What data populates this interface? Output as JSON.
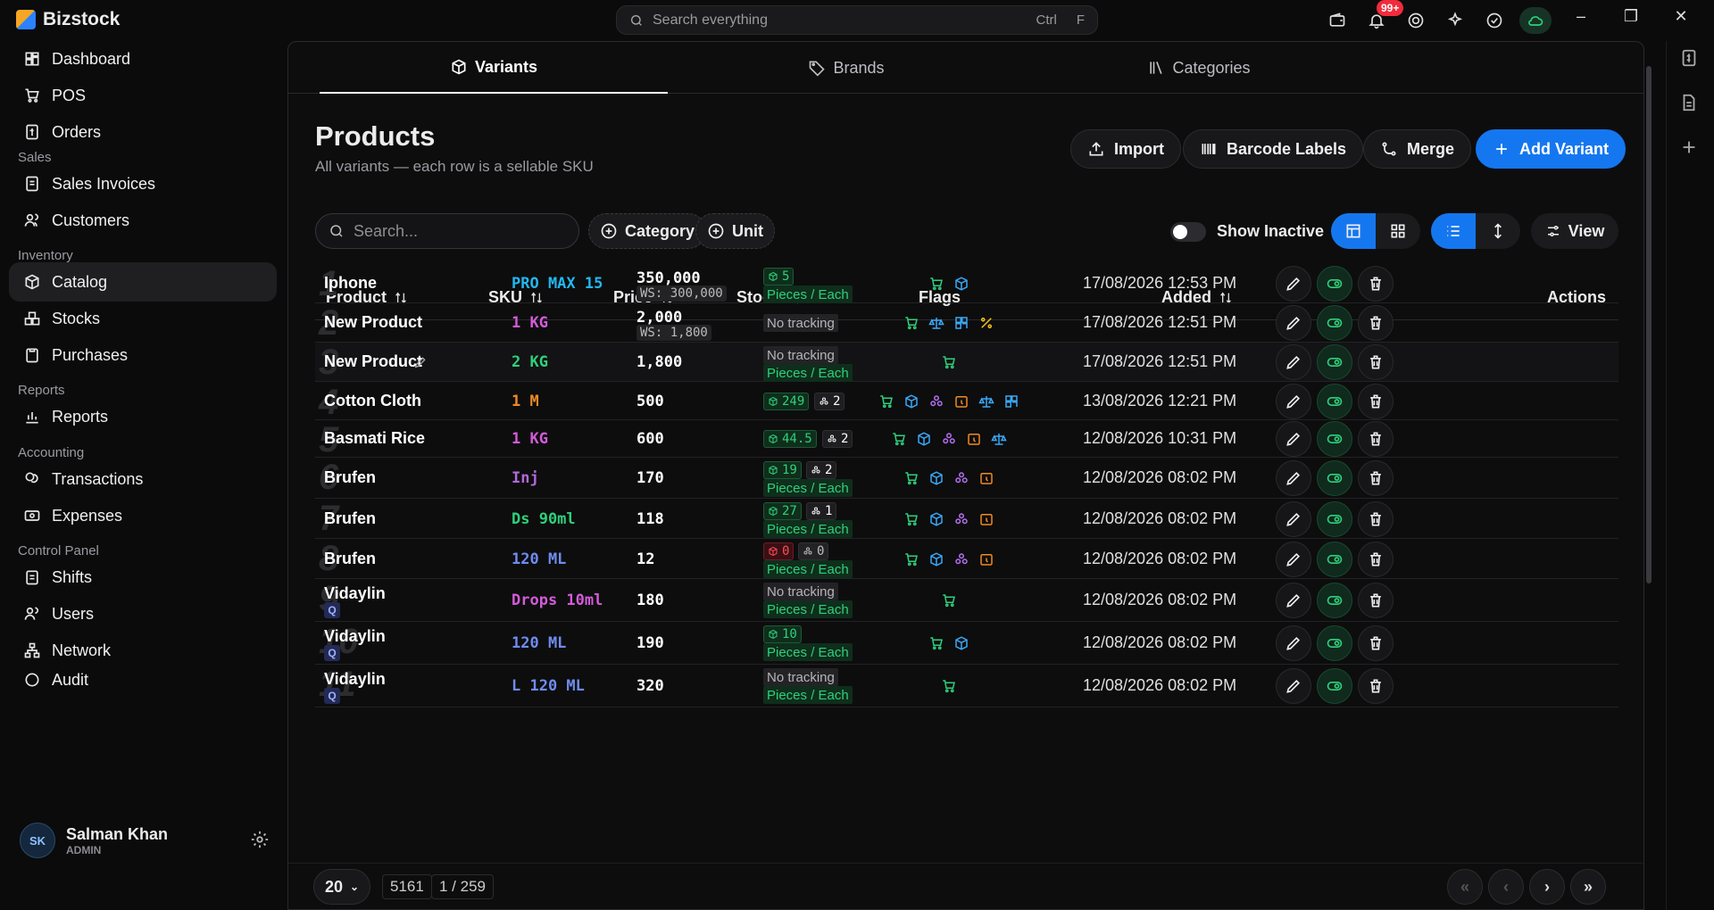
{
  "app": {
    "name": "Bizstock"
  },
  "search": {
    "placeholder": "Search everything",
    "kbd_ctrl": "Ctrl",
    "kbd_key": "F"
  },
  "topbar": {
    "bell_badge": "99+"
  },
  "sidebar": {
    "items": [
      {
        "label": "Dashboard"
      },
      {
        "label": "POS"
      },
      {
        "label": "Orders"
      },
      {
        "label": "Sales Invoices"
      },
      {
        "label": "Customers"
      },
      {
        "label": "Catalog"
      },
      {
        "label": "Stocks"
      },
      {
        "label": "Purchases"
      },
      {
        "label": "Reports"
      },
      {
        "label": "Transactions"
      },
      {
        "label": "Expenses"
      },
      {
        "label": "Shifts"
      },
      {
        "label": "Users"
      },
      {
        "label": "Network"
      },
      {
        "label": "Audit"
      }
    ],
    "sections": [
      "Sales",
      "Inventory",
      "Reports",
      "Accounting",
      "Control Panel"
    ],
    "user": {
      "initials": "SK",
      "name": "Salman Khan",
      "role": "ADMIN"
    }
  },
  "tabs": [
    {
      "label": "Variants"
    },
    {
      "label": "Brands"
    },
    {
      "label": "Categories"
    }
  ],
  "page": {
    "title": "Products",
    "subtitle": "All variants — each row is a sellable SKU"
  },
  "buttons": {
    "import": "Import",
    "barcode": "Barcode Labels",
    "merge": "Merge",
    "add": "Add Variant",
    "view": "View"
  },
  "filters": {
    "search_placeholder": "Search...",
    "category": "Category",
    "unit": "Unit",
    "show_inactive": "Show Inactive"
  },
  "columns": {
    "product": "Product",
    "sku": "SKU",
    "price": "Price",
    "stock": "Stock",
    "flags": "Flags",
    "added": "Added",
    "actions": "Actions"
  },
  "rows": [
    {
      "n": "1",
      "name": "Iphone",
      "sku": "PRO MAX 15",
      "skuColor": "#22b8f0",
      "price": "350,000",
      "ws": "WS: 300,000",
      "stock": [
        {
          "t": "green",
          "v": "5"
        }
      ],
      "pieces": true,
      "flags": [
        "cart",
        "box"
      ],
      "added": "17/08/2026 12:53 PM"
    },
    {
      "n": "2",
      "name": "New Product",
      "sku": "1 KG",
      "skuColor": "#d35bd8",
      "price": "2,000",
      "ws": "WS: 1,800",
      "stock": [],
      "notrack": true,
      "flags": [
        "cart",
        "scale",
        "barcode",
        "percent"
      ],
      "added": "17/08/2026 12:51 PM"
    },
    {
      "n": "3",
      "name": "New Product",
      "sku": "2 KG",
      "skuColor": "#2fd07a",
      "price": "1,800",
      "stock": [],
      "notrack": true,
      "pieces": true,
      "flags": [
        "cart"
      ],
      "added": "17/08/2026 12:51 PM",
      "pen": true
    },
    {
      "n": "4",
      "name": "Cotton Cloth",
      "sku": "1 M",
      "skuColor": "#f08a24",
      "price": "500",
      "stock": [
        {
          "t": "green",
          "v": "249"
        },
        {
          "t": "dark",
          "v": "2"
        }
      ],
      "flags": [
        "cart",
        "box",
        "layers",
        "clock",
        "scale",
        "barcode"
      ],
      "added": "13/08/2026 12:21 PM"
    },
    {
      "n": "5",
      "name": "Basmati Rice",
      "sku": "1 KG",
      "skuColor": "#d35bd8",
      "price": "600",
      "stock": [
        {
          "t": "green",
          "v": "44.5"
        },
        {
          "t": "dark",
          "v": "2"
        }
      ],
      "flags": [
        "cart",
        "box",
        "layers",
        "clock",
        "scale"
      ],
      "added": "12/08/2026 10:31 PM"
    },
    {
      "n": "6",
      "name": "Brufen",
      "sku": "Inj",
      "skuColor": "#b06ad8",
      "price": "170",
      "stock": [
        {
          "t": "green",
          "v": "19"
        },
        {
          "t": "dark",
          "v": "2"
        }
      ],
      "pieces": true,
      "flags": [
        "cart",
        "box",
        "layers",
        "clock"
      ],
      "added": "12/08/2026 08:02 PM"
    },
    {
      "n": "7",
      "name": "Brufen",
      "sku": "Ds 90ml",
      "skuColor": "#2fd07a",
      "price": "118",
      "stock": [
        {
          "t": "green",
          "v": "27"
        },
        {
          "t": "dark",
          "v": "1"
        }
      ],
      "pieces": true,
      "flags": [
        "cart",
        "box",
        "layers",
        "clock"
      ],
      "added": "12/08/2026 08:02 PM"
    },
    {
      "n": "8",
      "name": "Brufen",
      "sku": "120 ML",
      "skuColor": "#6f8cf0",
      "price": "12",
      "stock": [
        {
          "t": "red",
          "v": "0"
        },
        {
          "t": "gray",
          "v": "0"
        }
      ],
      "pieces": true,
      "flags": [
        "cart",
        "box",
        "layers",
        "clock"
      ],
      "added": "12/08/2026 08:02 PM"
    },
    {
      "n": "9",
      "name": "Vidaylin",
      "sku": "Drops 10ml",
      "skuColor": "#d35bd8",
      "price": "180",
      "stock": [],
      "notrack": true,
      "pieces": true,
      "flags": [
        "cart"
      ],
      "added": "12/08/2026 08:02 PM",
      "q": "Q"
    },
    {
      "n": "10",
      "name": "Vidaylin",
      "sku": "120 ML",
      "skuColor": "#6f8cf0",
      "price": "190",
      "stock": [
        {
          "t": "green",
          "v": "10"
        }
      ],
      "pieces": true,
      "flags": [
        "cart",
        "box"
      ],
      "added": "12/08/2026 08:02 PM",
      "q": "Q"
    },
    {
      "n": "11",
      "name": "Vidaylin",
      "sku": "L 120 ML",
      "skuColor": "#6f8cf0",
      "price": "320",
      "stock": [],
      "notrack": true,
      "pieces": true,
      "flags": [
        "cart"
      ],
      "added": "12/08/2026 08:02 PM",
      "q": "Q"
    }
  ],
  "badges": {
    "no_tracking": "No tracking",
    "pieces": "Pieces / Each"
  },
  "pager": {
    "page_size": "20",
    "total": "5161",
    "page": "1 / 259"
  },
  "colors": {
    "accent": "#1577f0",
    "green": "#2fd07a",
    "red": "#ff4a58",
    "flag_cart": "#2fd07a",
    "flag_box": "#3aa8f5",
    "flag_layers": "#b66ff0",
    "flag_clock": "#f08a24",
    "flag_scale": "#3aa8f5",
    "flag_barcode": "#3aa8f5",
    "flag_percent": "#f5c518"
  }
}
